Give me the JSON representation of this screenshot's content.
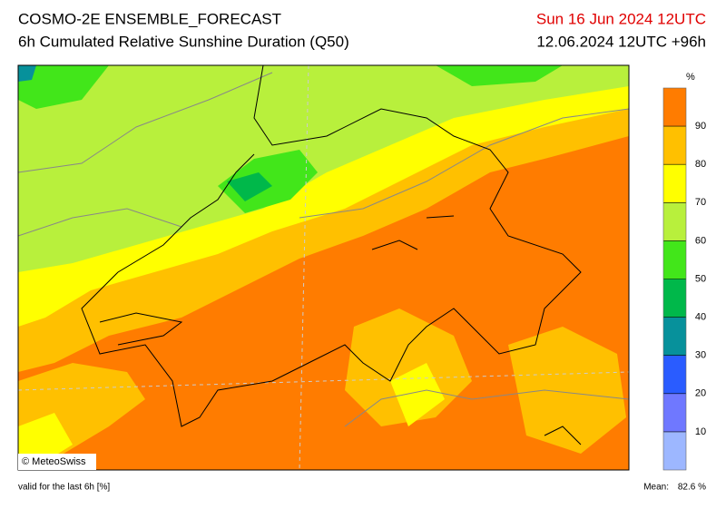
{
  "header": {
    "title": "COSMO-2E ENSEMBLE_FORECAST",
    "subtitle": "6h Cumulated Relative Sunshine Duration (Q50)",
    "valid_time": "Sun 16 Jun 2024 12UTC",
    "run_time": "12.06.2024 12UTC +96h"
  },
  "legend": {
    "unit": "%",
    "range": [
      0,
      100
    ],
    "ticks": [
      10,
      20,
      30,
      40,
      50,
      60,
      70,
      80,
      90
    ],
    "colors": [
      "#9db7ff",
      "#6f78ff",
      "#2a5cff",
      "#07919b",
      "#00b84a",
      "#42e61a",
      "#b8f03c",
      "#ffff00",
      "#ffc000",
      "#ff7c00"
    ]
  },
  "map": {
    "copyright": "© MeteoSwiss"
  },
  "footer": {
    "validity": "valid for the last 6h [%]",
    "mean_label": "Mean:",
    "mean_value": "82.6 %"
  }
}
